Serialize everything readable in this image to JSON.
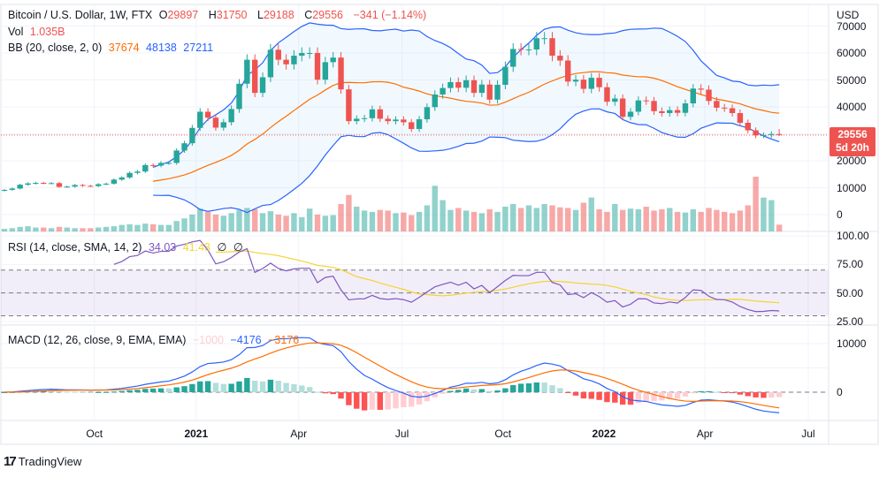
{
  "legend": {
    "symbol": "Bitcoin / U.S. Dollar, 1W, FTX",
    "o_label": "O",
    "open": "29897",
    "h_label": "H",
    "high": "31750",
    "l_label": "L",
    "low": "29188",
    "c_label": "C",
    "close": "29556",
    "change": "−341 (−1.14%)",
    "vol_label": "Vol",
    "vol": "1.035B",
    "bb_label": "BB (20, close, 2, 0)",
    "bb_basis": "37674",
    "bb_upper": "48138",
    "bb_lower": "27211"
  },
  "rsi_legend": {
    "label": "RSI (14, close, SMA, 14, 2)",
    "rsi": "34.03",
    "sma": "41.43",
    "x1": "∅",
    "x2": "∅"
  },
  "macd_legend": {
    "label": "MACD (12, 26, close, 9, EMA, EMA)",
    "hist": "−1000",
    "macd": "−4176",
    "signal": "−3176"
  },
  "currency": "USD",
  "price_label": {
    "price": "29556",
    "countdown": "5d 20h"
  },
  "price_axis": [
    "70000",
    "60000",
    "50000",
    "40000",
    "20000",
    "10000",
    "0"
  ],
  "rsi_axis": [
    "100.00",
    "75.00",
    "50.00",
    "25.00"
  ],
  "macd_axis": [
    "10000",
    "0"
  ],
  "brand": "TradingView",
  "colors": {
    "up": "#26a69a",
    "down": "#ef5350",
    "bb_band": "#2962ff",
    "bb_basis": "#ff6d00",
    "rsi": "#7e57c2",
    "rsi_sma": "#f5d330",
    "macd": "#2962ff",
    "signal": "#ff6d00"
  },
  "chart_data": {
    "type": "candlestick",
    "interval": "1W",
    "time_ticks": [
      {
        "label": "Oct",
        "week": 11.5
      },
      {
        "label": "2021",
        "week": 24.5,
        "year": true
      },
      {
        "label": "Apr",
        "week": 37.6
      },
      {
        "label": "Jul",
        "week": 50.8
      },
      {
        "label": "Oct",
        "week": 63.7
      },
      {
        "label": "2022",
        "week": 76.6,
        "year": true
      },
      {
        "label": "Apr",
        "week": 89.5
      },
      {
        "label": "Jul",
        "week": 102.7
      }
    ],
    "price_range": [
      0,
      70000
    ],
    "last": {
      "open": 29897,
      "high": 31750,
      "low": 29188,
      "close": 29556
    },
    "closes": [
      9200,
      9700,
      11100,
      11600,
      11800,
      11700,
      11700,
      10300,
      10400,
      11000,
      10700,
      10600,
      11300,
      11500,
      13000,
      13800,
      15500,
      16000,
      18400,
      18200,
      19200,
      19200,
      23800,
      26500,
      32200,
      38200,
      36000,
      32300,
      34300,
      39200,
      48600,
      57500,
      45200,
      51000,
      61200,
      57500,
      55800,
      59000,
      60000,
      60000,
      50100,
      56600,
      58300,
      46500,
      34700,
      35600,
      35800,
      39100,
      35600,
      34700,
      35300,
      34300,
      31800,
      35400,
      39900,
      44600,
      47000,
      49200,
      47100,
      49900,
      45200,
      48300,
      42700,
      48200,
      54900,
      61500,
      61300,
      61300,
      65500,
      65500,
      59000,
      57200,
      49400,
      50100,
      46700,
      50800,
      47300,
      41900,
      43100,
      36300,
      38200,
      42400,
      42200,
      38400,
      37700,
      38800,
      37800,
      41300,
      46800,
      46400,
      42200,
      39700,
      39500,
      37700,
      34100,
      31300,
      29400,
      29500,
      29900,
      29556
    ],
    "volumes_billion": [
      0.4,
      0.5,
      0.7,
      0.8,
      0.6,
      0.6,
      0.5,
      0.7,
      0.6,
      0.5,
      0.5,
      0.5,
      0.6,
      0.7,
      0.8,
      1.0,
      1.1,
      1.0,
      1.2,
      1.1,
      1.0,
      1.0,
      1.6,
      2.0,
      2.6,
      3.5,
      3.0,
      2.6,
      2.4,
      2.8,
      3.3,
      3.6,
      3.4,
      2.8,
      3.1,
      2.6,
      2.4,
      2.8,
      2.2,
      3.5,
      2.6,
      2.4,
      2.5,
      4.2,
      5.6,
      3.8,
      3.2,
      3.0,
      3.3,
      3.2,
      2.8,
      2.9,
      2.5,
      3.0,
      4.0,
      7.0,
      4.8,
      3.3,
      3.6,
      3.2,
      3.0,
      2.8,
      3.4,
      3.0,
      3.8,
      4.2,
      3.6,
      4.0,
      3.6,
      4.2,
      4.0,
      3.7,
      3.6,
      3.3,
      4.4,
      5.2,
      3.4,
      3.0,
      4.2,
      3.3,
      3.5,
      3.4,
      3.8,
      3.2,
      3.4,
      3.6,
      3.0,
      2.9,
      3.4,
      3.0,
      3.6,
      3.3,
      3.0,
      2.8,
      3.2,
      4.0,
      8.4,
      5.2,
      4.8,
      1.035
    ],
    "rsi_levels": [
      70,
      50,
      30
    ],
    "rsi_range": [
      25,
      100
    ],
    "macd_range": [
      -5000,
      12000
    ]
  }
}
